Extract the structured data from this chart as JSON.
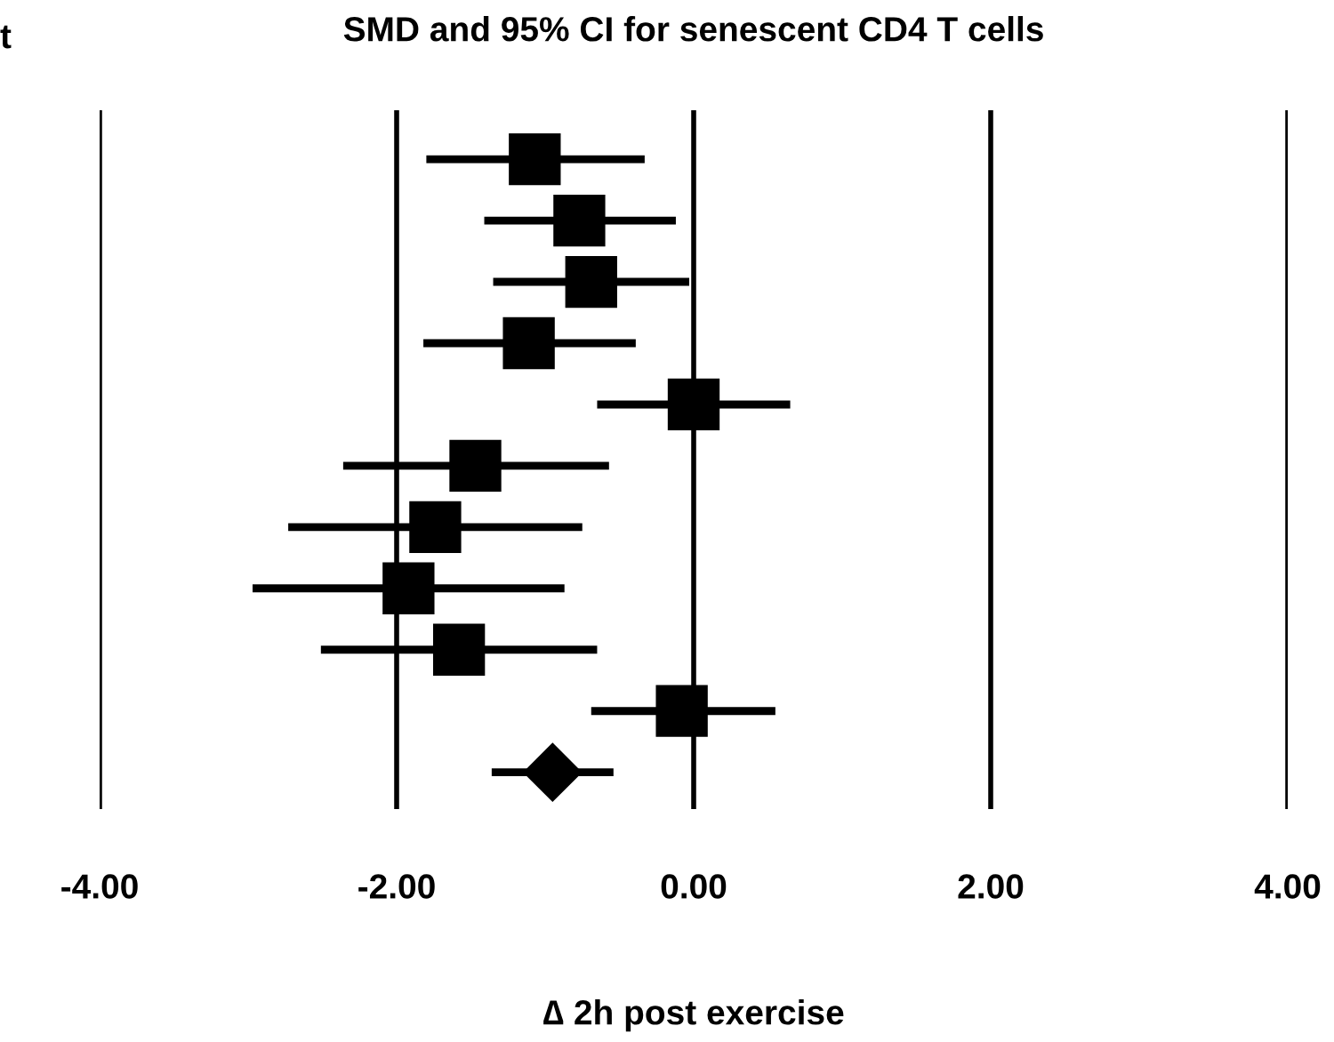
{
  "chart_data": {
    "type": "scatter",
    "title": "SMD and 95% CI for senescent CD4 T cells",
    "xlabel": "∆ 2h post exercise",
    "annotations": [
      "t"
    ],
    "orientation": "horizontal",
    "categories": [
      null,
      null,
      null,
      null,
      null,
      null,
      null,
      null,
      null,
      null,
      null
    ],
    "series": [
      {
        "color": "#000000",
        "marker": "square",
        "values": [
          -1.07,
          -0.77,
          -0.69,
          -1.11,
          0.0,
          -1.47,
          -1.74,
          -1.92,
          -1.58,
          -0.08,
          null
        ],
        "errors": [
          [
            -1.8,
            -0.33
          ],
          [
            -1.41,
            -0.12
          ],
          [
            -1.35,
            -0.03
          ],
          [
            -1.82,
            -0.39
          ],
          [
            -0.65,
            0.65
          ],
          [
            -2.36,
            -0.57
          ],
          [
            -2.73,
            -0.75
          ],
          [
            -2.97,
            -0.87
          ],
          [
            -2.51,
            -0.65
          ],
          [
            -0.69,
            0.55
          ],
          null
        ]
      },
      {
        "color": "#000000",
        "marker": "diamond",
        "values": [
          null,
          null,
          null,
          null,
          null,
          null,
          null,
          null,
          null,
          null,
          -0.95
        ],
        "errors": [
          null,
          null,
          null,
          null,
          null,
          null,
          null,
          null,
          null,
          null,
          [
            -1.36,
            -0.54
          ]
        ]
      }
    ],
    "xlim": [
      -4,
      4
    ],
    "xticks": [
      {
        "value": -4,
        "label": "-4.00"
      },
      {
        "value": -2,
        "label": "-2.00"
      },
      {
        "value": 0,
        "label": "0.00"
      },
      {
        "value": 2,
        "label": "2.00"
      },
      {
        "value": 4,
        "label": "4.00"
      }
    ],
    "grid": "x"
  }
}
